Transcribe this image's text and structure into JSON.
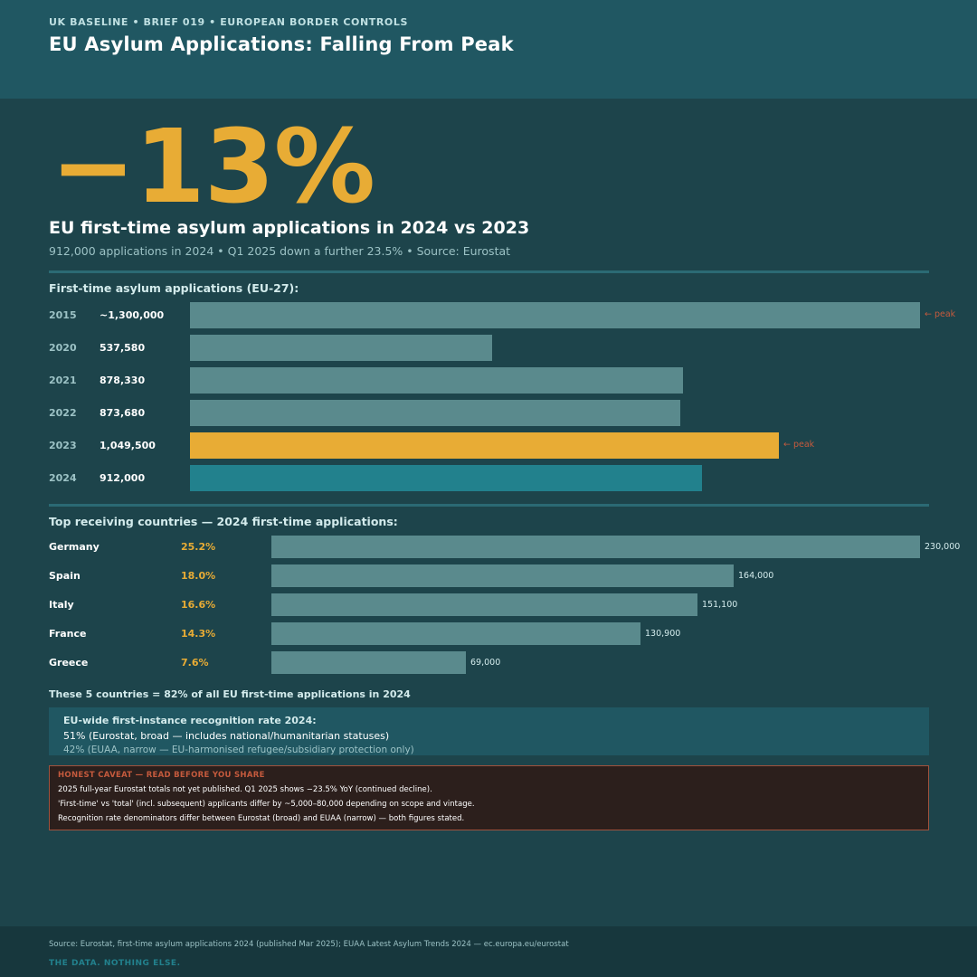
{
  "header": {
    "kicker": "UK BASELINE  •  BRIEF 019  •  EUROPEAN BORDER CONTROLS",
    "title": "EU Asylum Applications: Falling From Peak"
  },
  "hero": {
    "figure": "−13%",
    "subtitle": "EU first-time asylum applications in 2024 vs 2023",
    "meta": "912,000 applications in 2024  •  Q1 2025 down a further 23.5%  •  Source: Eurostat"
  },
  "colors": {
    "bar_default": "#5a8a8d",
    "bar_peak": "#e8ac35",
    "bar_current": "#22818d",
    "accent": "#e8ac35",
    "caveat": "#c55a3d"
  },
  "chart_data": [
    {
      "type": "bar",
      "orientation": "horizontal",
      "title": "First-time asylum applications (EU-27):",
      "categories": [
        "2015",
        "2020",
        "2021",
        "2022",
        "2023",
        "2024"
      ],
      "values": [
        1300000,
        537580,
        878330,
        873680,
        1049500,
        912000
      ],
      "value_labels": [
        "~1,300,000",
        "537,580",
        "878,330",
        "873,680",
        "1,049,500",
        "912,000"
      ],
      "highlight": [
        "default",
        "default",
        "default",
        "default",
        "peak",
        "current"
      ],
      "annotations": [
        {
          "category": "2015",
          "text": "← peak"
        },
        {
          "category": "2023",
          "text": "← peak"
        }
      ],
      "xlim": [
        0,
        1300000
      ]
    },
    {
      "type": "bar",
      "orientation": "horizontal",
      "title": "Top receiving countries — 2024 first-time applications:",
      "categories": [
        "Germany",
        "Spain",
        "Italy",
        "France",
        "Greece"
      ],
      "shares": [
        "25.2%",
        "18.0%",
        "16.6%",
        "14.3%",
        "7.6%"
      ],
      "values": [
        230000,
        164000,
        151100,
        130900,
        69000
      ],
      "value_labels": [
        "230,000",
        "164,000",
        "151,100",
        "130,900",
        "69,000"
      ],
      "xlim": [
        0,
        230000
      ]
    }
  ],
  "summary": "These 5 countries = 82% of all EU first-time applications in 2024",
  "recognition": {
    "title": "EU-wide first-instance recognition rate 2024:",
    "line1": "51% (Eurostat, broad — includes national/humanitarian statuses)",
    "line2": "42% (EUAA, narrow — EU-harmonised refugee/subsidiary protection only)"
  },
  "caveat": {
    "title": "HONEST CAVEAT — READ BEFORE YOU SHARE",
    "lines": [
      "2025 full-year Eurostat totals not yet published. Q1 2025 shows −23.5% YoY (continued decline).",
      "'First-time' vs 'total' (incl. subsequent) applicants differ by ~5,000–80,000 depending on scope and vintage.",
      "Recognition rate denominators differ between Eurostat (broad) and EUAA (narrow) — both figures stated."
    ]
  },
  "footer": {
    "source": "Source: Eurostat, first-time asylum applications 2024 (published Mar 2025); EUAA Latest Asylum Trends 2024 — ec.europa.eu/eurostat",
    "tagline": "THE DATA. NOTHING ELSE."
  }
}
